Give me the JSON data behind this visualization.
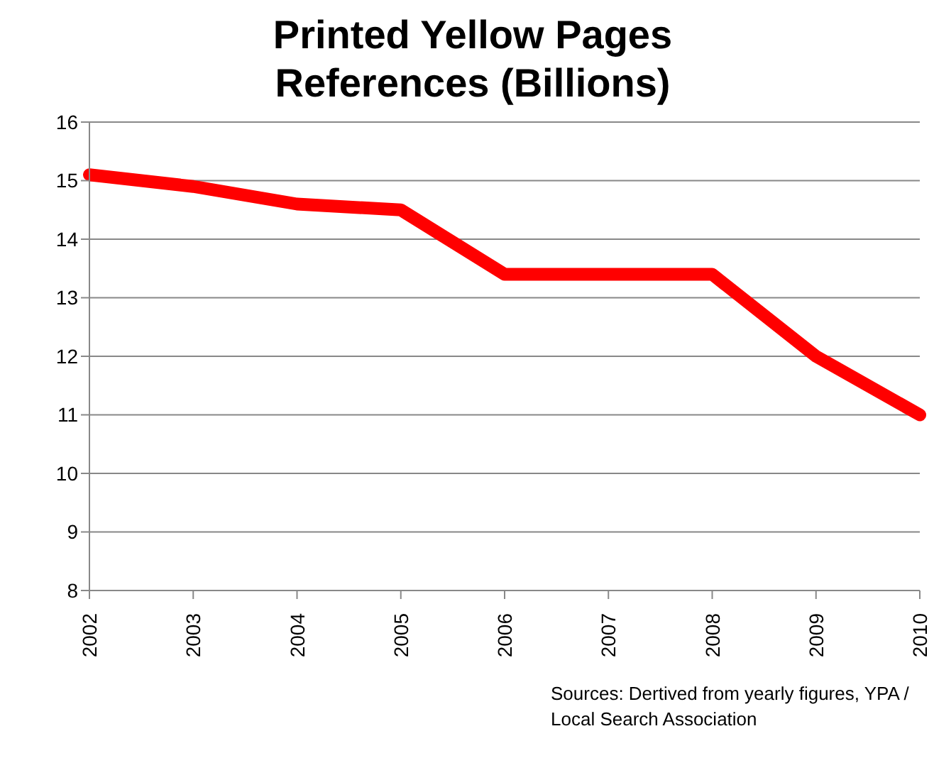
{
  "chart_data": {
    "type": "line",
    "title": "Printed Yellow Pages References (Billions)",
    "categories": [
      "2002",
      "2003",
      "2004",
      "2005",
      "2006",
      "2007",
      "2008",
      "2009",
      "2010"
    ],
    "series": [
      {
        "color": "#ff0000",
        "values": [
          15.1,
          14.9,
          14.6,
          14.5,
          13.4,
          13.4,
          13.4,
          12.0,
          11.0
        ]
      }
    ],
    "ylim": [
      8,
      16
    ],
    "yticks": [
      8,
      9,
      10,
      11,
      12,
      13,
      14,
      15,
      16
    ],
    "grid": "y",
    "legend": false,
    "marker": "none",
    "line_style": "solid",
    "annotations": [
      "Sources: Dertived from yearly figures, YPA / Local Search Association"
    ]
  }
}
